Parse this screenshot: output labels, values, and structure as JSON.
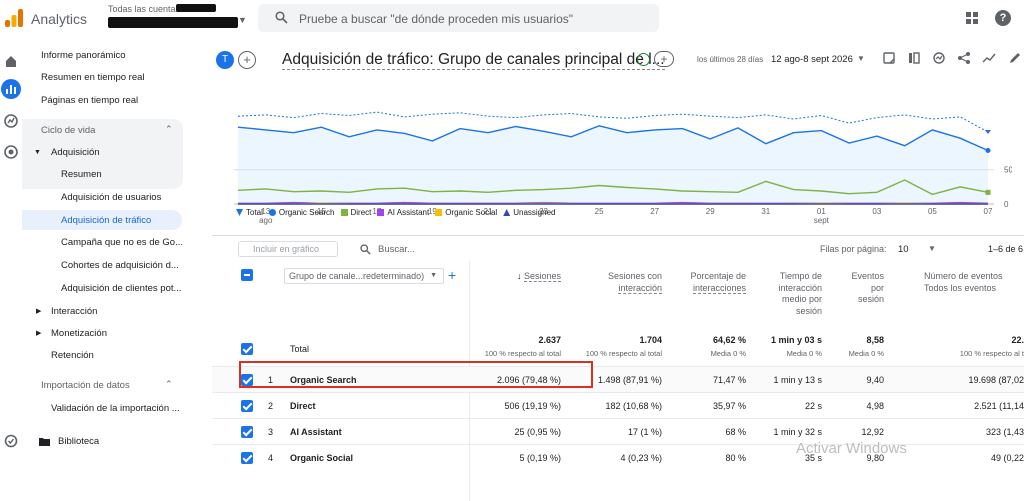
{
  "app": {
    "name": "Analytics",
    "account_crumb": "Todas las cuentas >",
    "search_placeholder": "Pruebe a buscar \"de dónde proceden mis usuarios\"",
    "help_glyph": "?"
  },
  "icons": [
    "analytics-logo-icon",
    "search-icon",
    "apps-icon",
    "help-icon",
    "home-icon",
    "reports-icon",
    "explore-icon",
    "advertising-icon",
    "admin-icon",
    "folder-icon",
    "check-circle-icon",
    "share-icon",
    "insights-icon",
    "edit-icon",
    "compare-icon",
    "calendar-icon"
  ],
  "nav": {
    "top_items": [
      "Informe panorámico",
      "Resumen en tiempo real",
      "Páginas en tiempo real"
    ],
    "lifecycle_label": "Ciclo de vida",
    "acquisition_label": "Adquisición",
    "acquisition_items": [
      "Resumen",
      "Adquisición de usuarios",
      "Adquisición de tráfico",
      "Campaña que no es de Go...",
      "Cohortes de adquisición d...",
      "Adquisición de clientes pot..."
    ],
    "active_item": "Adquisición de tráfico",
    "other_sections": [
      "Interacción",
      "Monetización",
      "Retención"
    ],
    "data_import_label": "Importación de datos",
    "data_import_items": [
      "Validación de la importación ..."
    ],
    "library_label": "Biblioteca"
  },
  "header": {
    "avatar_letter": "T",
    "plus_glyph": "+",
    "title": "Adquisición de tráfico: Grupo de canales principal de l...",
    "date_label": "los últimos 28 días",
    "date_range": "12 ago-8 sept 2026"
  },
  "chart_data": {
    "type": "line",
    "x": [
      "12 ago",
      "13 ago",
      "14 ago",
      "15 ago",
      "16 ago",
      "17 ago",
      "18 ago",
      "19 ago",
      "20 ago",
      "21 ago",
      "22 ago",
      "23 ago",
      "24 ago",
      "25 ago",
      "26 ago",
      "27 ago",
      "28 ago",
      "29 ago",
      "30 ago",
      "31 ago",
      "1 sept",
      "2 sept",
      "3 sept",
      "4 sept",
      "5 sept",
      "6 sept",
      "7 sept",
      "8 sept"
    ],
    "x_tick_labels": [
      "13",
      "15",
      "17",
      "19",
      "21",
      "23",
      "25",
      "27",
      "29",
      "31",
      "01",
      "03",
      "05",
      "07"
    ],
    "x_tick_sublabels": {
      "13": "ago",
      "01": "sept"
    },
    "y_tick_labels": [
      "0",
      "50"
    ],
    "ylim": [
      0,
      140
    ],
    "series": [
      {
        "name": "Total",
        "color": "#1a73e8",
        "dashed": true,
        "values": [
          128,
          130,
          126,
          132,
          129,
          134,
          127,
          131,
          133,
          128,
          126,
          130,
          132,
          127,
          125,
          129,
          131,
          128,
          126,
          130,
          124,
          129,
          118,
          126,
          130,
          124,
          127,
          105
        ]
      },
      {
        "name": "Organic Search",
        "color": "#1a73e8",
        "values": [
          112,
          108,
          104,
          112,
          98,
          108,
          103,
          92,
          110,
          104,
          113,
          106,
          98,
          114,
          104,
          108,
          110,
          95,
          111,
          88,
          104,
          107,
          89,
          99,
          85,
          108,
          96,
          78
        ]
      },
      {
        "name": "Direct",
        "color": "#7cb342",
        "values": [
          20,
          22,
          18,
          19,
          17,
          22,
          23,
          18,
          19,
          17,
          20,
          21,
          23,
          27,
          24,
          22,
          19,
          18,
          17,
          33,
          21,
          19,
          15,
          17,
          35,
          14,
          25,
          17
        ]
      },
      {
        "name": "AI Assistant",
        "color": "#a142f4",
        "values": [
          1,
          1,
          2,
          1,
          1,
          1,
          2,
          1,
          1,
          1,
          1,
          2,
          1,
          1,
          1,
          1,
          2,
          1,
          1,
          1,
          1,
          1,
          1,
          1,
          1,
          1,
          2,
          1
        ]
      },
      {
        "name": "Organic Social",
        "color": "#fbbc04",
        "values": [
          0,
          0,
          0,
          1,
          0,
          0,
          0,
          0,
          0,
          0,
          0,
          1,
          0,
          0,
          0,
          0,
          0,
          0,
          0,
          0,
          0,
          1,
          0,
          0,
          1,
          0,
          0,
          0
        ]
      },
      {
        "name": "Unassigned",
        "color": "#3949ab",
        "values": [
          0,
          0,
          0,
          0,
          0,
          0,
          0,
          0,
          0,
          0,
          0,
          0,
          0,
          0,
          0,
          0,
          0,
          0,
          0,
          0,
          0,
          0,
          0,
          0,
          0,
          0,
          0,
          0
        ]
      }
    ],
    "legend": [
      "Total",
      "Organic Search",
      "Direct",
      "AI Assistant",
      "Organic Social",
      "Unassigned"
    ]
  },
  "toolbar": {
    "include_btn": "Incluir en gráfico",
    "search_label": "Buscar...",
    "rows_label": "Filas por página:",
    "rows_value": "10",
    "rows_range": "1–6 de 6"
  },
  "table": {
    "dimension_select": "Grupo de canale...redeterminado)",
    "headers": {
      "sesiones": "Sesiones",
      "sesiones_interaccion": [
        "Sesiones con",
        "interacción"
      ],
      "porcentaje": [
        "Porcentaje de",
        "interacciones"
      ],
      "tiempo": [
        "Tiempo de",
        "interacción",
        "medio por",
        "sesión"
      ],
      "eventos_sesion": [
        "Eventos",
        "por",
        "sesión"
      ],
      "num_eventos": [
        "Número de eventos",
        "Todos los eventos"
      ]
    },
    "total": {
      "label": "Total",
      "sesiones": "2.637",
      "sesiones_sub": "100 % respecto al total",
      "sesiones_int": "1.704",
      "sesiones_int_sub": "100 % respecto al total",
      "porcentaje": "64,62 %",
      "porcentaje_sub": "Media 0 %",
      "tiempo": "1 min y 03 s",
      "tiempo_sub": "Media 0 %",
      "eventos": "8,58",
      "eventos_sub": "Media 0 %",
      "num_eventos": "22.",
      "num_eventos_sub": "100 % respecto al t"
    },
    "rows": [
      {
        "n": "1",
        "channel": "Organic Search",
        "sesiones": "2.096 (79,48 %)",
        "sesiones_int": "1.498 (87,91 %)",
        "porcentaje": "71,47 %",
        "tiempo": "1 min y 13 s",
        "eventos": "9,40",
        "num_eventos": "19.698 (87,02"
      },
      {
        "n": "2",
        "channel": "Direct",
        "sesiones": "506 (19,19 %)",
        "sesiones_int": "182 (10,68 %)",
        "porcentaje": "35,97 %",
        "tiempo": "22 s",
        "eventos": "4,98",
        "num_eventos": "2.521 (11,14"
      },
      {
        "n": "3",
        "channel": "AI Assistant",
        "sesiones": "25 (0,95 %)",
        "sesiones_int": "17 (1 %)",
        "porcentaje": "68 %",
        "tiempo": "1 min y 32 s",
        "eventos": "12,92",
        "num_eventos": "323 (1,43"
      },
      {
        "n": "4",
        "channel": "Organic Social",
        "sesiones": "5 (0,19 %)",
        "sesiones_int": "4 (0,23 %)",
        "porcentaje": "80 %",
        "tiempo": "35 s",
        "eventos": "9,80",
        "num_eventos": "49 (0,22"
      }
    ]
  },
  "watermark": "Activar Windows"
}
